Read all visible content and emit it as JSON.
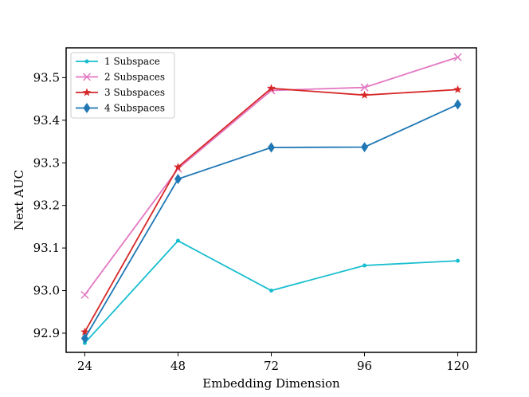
{
  "chart_data": {
    "type": "line",
    "title": "",
    "xlabel": "Embedding Dimension",
    "ylabel": "Next AUC",
    "x": [
      24,
      48,
      72,
      96,
      120
    ],
    "x_ticks": [
      "24",
      "48",
      "72",
      "96",
      "120"
    ],
    "y_ticks": [
      "92.9",
      "93.0",
      "93.1",
      "93.2",
      "93.3",
      "93.4",
      "93.5"
    ],
    "xlim": [
      19.2,
      124.8
    ],
    "ylim": [
      92.855,
      93.57
    ],
    "grid": false,
    "legend_position": "top-left",
    "series": [
      {
        "name": "1 Subspace",
        "color": "#17becf",
        "marker": "dot",
        "values": [
          92.877,
          93.117,
          93.0,
          93.059,
          93.07
        ]
      },
      {
        "name": "2 Subspaces",
        "color": "#e377c2",
        "marker": "x",
        "values": [
          92.99,
          93.286,
          93.47,
          93.477,
          93.548
        ]
      },
      {
        "name": "3 Subspaces",
        "color": "#d62728",
        "marker": "star",
        "values": [
          92.903,
          93.29,
          93.475,
          93.459,
          93.472
        ]
      },
      {
        "name": "4 Subspaces",
        "color": "#1f77b4",
        "marker": "diamond",
        "values": [
          92.888,
          93.262,
          93.336,
          93.337,
          93.437
        ]
      }
    ]
  }
}
